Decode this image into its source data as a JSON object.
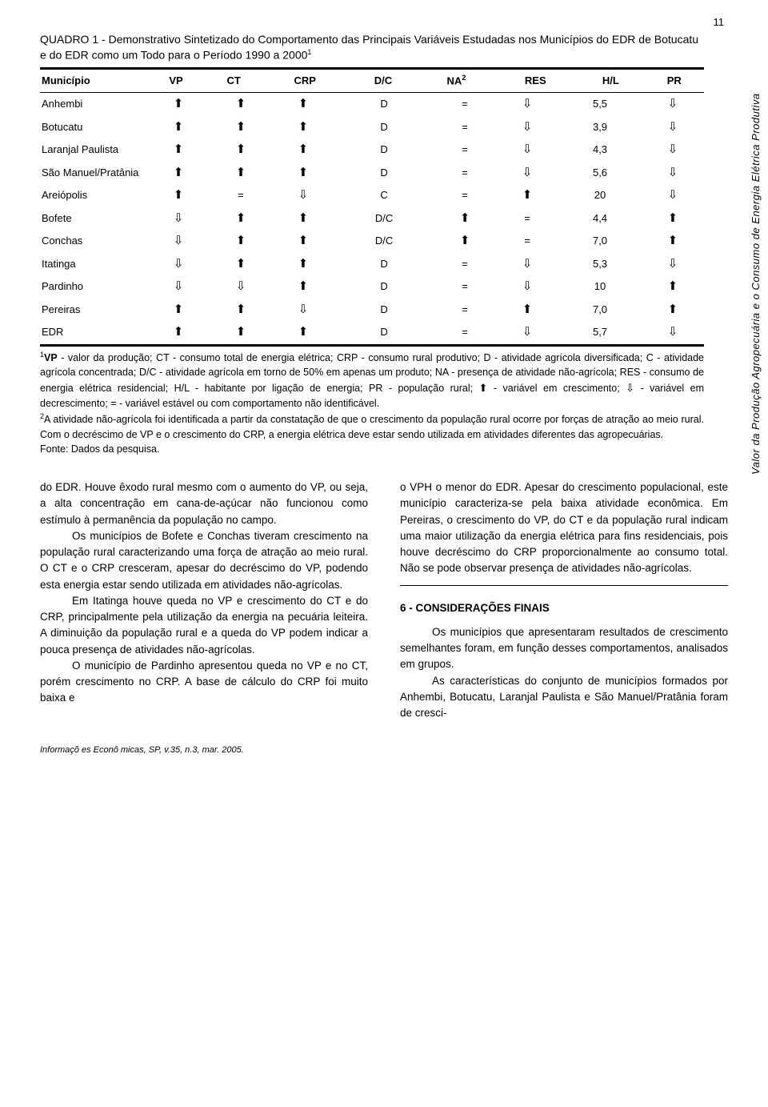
{
  "page_number": "11",
  "sidebar_title": "Valor da Produção Agropecuária e o Consumo de Energia Elétrica Produtiva",
  "table": {
    "title_prefix": "QUADRO 1 - ",
    "title_text": "Demonstrativo Sintetizado do Comportamento das Principais Variáveis Estudadas nos Municípios do EDR de Botucatu e do EDR como um Todo para o Período 1990 a 2000",
    "title_sup": "1",
    "headers": [
      "Município",
      "VP",
      "CT",
      "CRP",
      "D/C",
      "NA",
      "RES",
      "H/L",
      "PR"
    ],
    "na_sup": "2",
    "rows": [
      {
        "m": "Anhembi",
        "vp": "up",
        "ct": "up",
        "crp": "up",
        "dc": "D",
        "na": "=",
        "res": "down",
        "hl": "5,5",
        "pr": "down"
      },
      {
        "m": "Botucatu",
        "vp": "up",
        "ct": "up",
        "crp": "up",
        "dc": "D",
        "na": "=",
        "res": "down",
        "hl": "3,9",
        "pr": "down"
      },
      {
        "m": "Laranjal Paulista",
        "vp": "up",
        "ct": "up",
        "crp": "up",
        "dc": "D",
        "na": "=",
        "res": "down",
        "hl": "4,3",
        "pr": "down"
      },
      {
        "m": "São Manuel/Pratânia",
        "vp": "up",
        "ct": "up",
        "crp": "up",
        "dc": "D",
        "na": "=",
        "res": "down",
        "hl": "5,6",
        "pr": "down"
      },
      {
        "m": "Areiópolis",
        "vp": "up",
        "ct": "=",
        "crp": "down",
        "dc": "C",
        "na": "=",
        "res": "up",
        "hl": "20",
        "pr": "down"
      },
      {
        "m": "Bofete",
        "vp": "down",
        "ct": "up",
        "crp": "up",
        "dc": "D/C",
        "na": "up",
        "res": "=",
        "hl": "4,4",
        "pr": "up"
      },
      {
        "m": "Conchas",
        "vp": "down",
        "ct": "up",
        "crp": "up",
        "dc": "D/C",
        "na": "up",
        "res": "=",
        "hl": "7,0",
        "pr": "up"
      },
      {
        "m": "Itatinga",
        "vp": "down",
        "ct": "up",
        "crp": "up",
        "dc": "D",
        "na": "=",
        "res": "down",
        "hl": "5,3",
        "pr": "down"
      },
      {
        "m": "Pardinho",
        "vp": "down",
        "ct": "down",
        "crp": "up",
        "dc": "D",
        "na": "=",
        "res": "down",
        "hl": "10",
        "pr": "up"
      },
      {
        "m": "Pereiras",
        "vp": "up",
        "ct": "up",
        "crp": "down",
        "dc": "D",
        "na": "=",
        "res": "up",
        "hl": "7,0",
        "pr": "up"
      },
      {
        "m": "EDR",
        "vp": "up",
        "ct": "up",
        "crp": "up",
        "dc": "D",
        "na": "=",
        "res": "down",
        "hl": "5,7",
        "pr": "down"
      }
    ]
  },
  "footnotes": {
    "note1_sup": "1",
    "note1_pre": "VP",
    "note1": " - valor da produção; CT - consumo total de energia elétrica; CRP - consumo rural produtivo; D - atividade agrícola diversificada; C - atividade agrícola concentrada; D/C - atividade agrícola em torno de 50% em apenas um produto; NA - presença de atividade não-agrícola; RES - consumo de energia elétrica residencial; H/L - habitante por ligação de energia; PR - população rural; ",
    "note1_mid": " - variável em crescimento; ",
    "note1_mid2": " - variável em decrescimento; = - variável estável ou com comportamento não identificável.",
    "note2_sup": "2",
    "note2": "A atividade não-agrícola foi identificada a partir da constatação de que o crescimento da população rural ocorre por forças de atração ao meio rural. Com o decréscimo de VP e o crescimento do CRP, a energia elétrica deve estar sendo utilizada em atividades diferentes das agropecuárias.",
    "source": "Fonte: Dados da pesquisa."
  },
  "col_left": {
    "p1": "do EDR. Houve êxodo rural mesmo com o  aumento do VP, ou seja, a alta concentração em cana-de-açúcar não funcionou como estímulo à permanência da população no campo.",
    "p2": "Os municípios de Bofete e Conchas tiveram crescimento na população rural caracterizando uma força de atração ao meio rural. O CT e o CRP cresceram, apesar do decréscimo do VP, podendo esta energia estar sendo utilizada em atividades não-agrícolas.",
    "p3": "Em Itatinga houve queda no VP e crescimento do CT e do CRP, principalmente pela utilização da energia na pecuária leiteira. A diminuição da população rural e a queda do VP podem indicar a pouca presença de atividades não-agrícolas.",
    "p4": "O município de Pardinho apresentou queda no VP e no CT, porém crescimento no CRP. A base de cálculo do CRP foi muito baixa e"
  },
  "col_right": {
    "p1": "o VPH o menor do EDR. Apesar do crescimento populacional, este município caracteriza-se pela baixa atividade econômica. Em Pereiras, o crescimento do VP, do CT e da população rural indicam uma maior utilização da energia elétrica para fins residenciais, pois houve decréscimo do CRP proporcionalmente ao consumo total. Não se pode observar presença de atividades não-agrícolas.",
    "heading": "6 - CONSIDERAÇÕES FINAIS",
    "p2": "Os municípios que apresentaram resultados de crescimento semelhantes foram, em função desses comportamentos, analisados em grupos.",
    "p3": "As características do conjunto de municípios formados por Anhembi, Botucatu, Laranjal Paulista e São Manuel/Pratânia foram de cresci-"
  },
  "footer": "Informaçõ es Econô micas, SP, v.35, n.3, mar. 2005."
}
